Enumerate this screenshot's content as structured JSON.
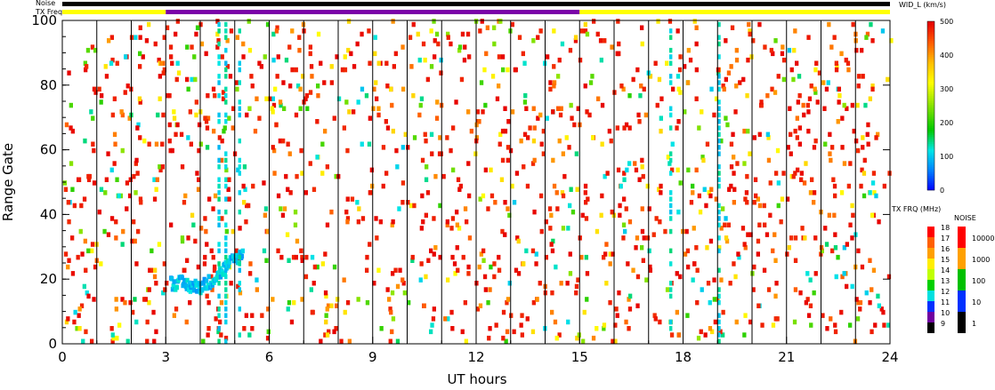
{
  "top_bars": {
    "noise_label": "Noise",
    "txfreq_label": "TX Freq",
    "segments_txfreq": [
      {
        "start": 0,
        "end": 3,
        "color": "#ffff00"
      },
      {
        "start": 3,
        "end": 15,
        "color": "#7a00a8"
      },
      {
        "start": 15,
        "end": 24,
        "color": "#ffff00"
      }
    ],
    "noise_color": "#000000"
  },
  "chart_data": {
    "type": "heatmap",
    "xlabel": "UT hours",
    "ylabel": "Range Gate",
    "xlim": [
      0,
      24
    ],
    "ylim": [
      0,
      100
    ],
    "x_ticks": [
      0,
      3,
      6,
      9,
      12,
      15,
      18,
      21,
      24
    ],
    "y_ticks": [
      0,
      20,
      40,
      60,
      80,
      100
    ],
    "scan_boundaries_hours": [
      1,
      2,
      3,
      4,
      5,
      6,
      7,
      8,
      9,
      10,
      11,
      12,
      13,
      14,
      15,
      16,
      17,
      18,
      19,
      20,
      21,
      22,
      23
    ],
    "colorbar": {
      "title": "WID_L (km/s)",
      "min": 0,
      "max": 500,
      "ticks": [
        0,
        100,
        200,
        300,
        400,
        500
      ]
    },
    "feature_cluster": {
      "description_points": [
        {
          "x": 3.1,
          "y": 18
        },
        {
          "x": 3.4,
          "y": 18
        },
        {
          "x": 3.7,
          "y": 17
        },
        {
          "x": 4.0,
          "y": 17
        },
        {
          "x": 4.3,
          "y": 19
        },
        {
          "x": 4.6,
          "y": 22
        },
        {
          "x": 4.9,
          "y": 25
        },
        {
          "x": 5.2,
          "y": 27
        }
      ],
      "color_value": 100
    },
    "vertical_streaks_hours": [
      4.5,
      4.7,
      5.1,
      17.6,
      19.0
    ]
  },
  "txfreq_legend": {
    "title": "TX FRQ (MHz)",
    "labels": [
      "18",
      "17",
      "16",
      "15",
      "14",
      "13",
      "12",
      "11",
      "10",
      "9"
    ]
  },
  "noise_legend": {
    "title": "NOISE",
    "labels": [
      "10000",
      "1000",
      "100",
      "10",
      "1"
    ]
  }
}
